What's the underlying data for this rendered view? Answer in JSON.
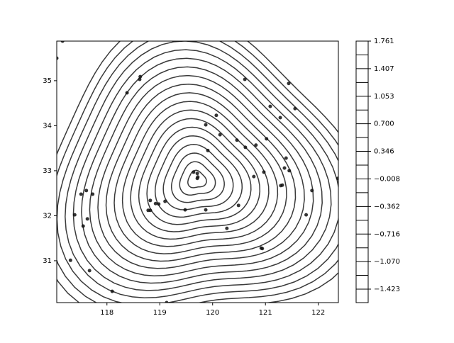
{
  "chart_data": {
    "type": "contour",
    "xlim": [
      117.05,
      122.38
    ],
    "ylim": [
      30.07,
      35.88
    ],
    "xticks": [
      118,
      119,
      120,
      121,
      122
    ],
    "yticks": [
      31,
      32,
      33,
      34,
      35
    ],
    "line_color": "#3a3a3a",
    "point_color": "#111111",
    "center": [
      119.7,
      32.8
    ],
    "levels": [
      1.761,
      1.584,
      1.407,
      1.23,
      1.053,
      0.876,
      0.7,
      0.523,
      0.346,
      0.169,
      -0.008,
      -0.185,
      -0.362,
      -0.539,
      -0.716,
      -0.893,
      -1.07,
      -1.246,
      -1.423
    ],
    "clim": [
      -1.596,
      1.761
    ],
    "cticks": [
      1.761,
      1.407,
      1.053,
      {
        "value": 0.7,
        "label": "0.700"
      },
      0.346,
      {
        "value": -0.008,
        "label": "−0.008"
      },
      {
        "value": -0.362,
        "label": "−0.362"
      },
      {
        "value": -0.716,
        "label": "−0.716"
      },
      {
        "value": -1.07,
        "label": "−1.070"
      },
      {
        "value": -1.423,
        "label": "−1.423"
      }
    ],
    "x": [
      117.16,
      117.05,
      118.38,
      118.63,
      118.62,
      120.61,
      121.44,
      119.87,
      120.07,
      120.14,
      121.09,
      121.28,
      121.56,
      121.02,
      120.46,
      120.82,
      120.62,
      119.91,
      121.39,
      121.45,
      121.36,
      119.64,
      119.71,
      120.78,
      120.97,
      121.32,
      121.29,
      121.88,
      121.77,
      120.49,
      119.87,
      119.48,
      119.1,
      118.98,
      118.92,
      118.82,
      118.78,
      118.82,
      120.27,
      117.61,
      117.51,
      117.73,
      117.39,
      117.63,
      117.55,
      117.31,
      117.67,
      118.1,
      119.13,
      120.94,
      120.92,
      119.71,
      119.72,
      122.37
    ],
    "y": [
      35.88,
      35.5,
      34.73,
      35.09,
      35.03,
      35.03,
      34.94,
      34.02,
      34.23,
      33.8,
      34.43,
      34.18,
      34.38,
      33.71,
      33.68,
      33.57,
      33.52,
      33.45,
      33.28,
      33.0,
      33.06,
      32.97,
      32.94,
      32.87,
      32.97,
      32.68,
      32.67,
      32.56,
      32.02,
      32.23,
      32.13,
      32.13,
      32.32,
      32.26,
      32.27,
      32.34,
      32.12,
      32.12,
      31.72,
      32.56,
      32.48,
      32.48,
      32.02,
      31.93,
      31.77,
      31.01,
      30.78,
      30.32,
      30.07,
      31.27,
      31.28,
      32.83,
      32.86,
      32.83
    ]
  }
}
